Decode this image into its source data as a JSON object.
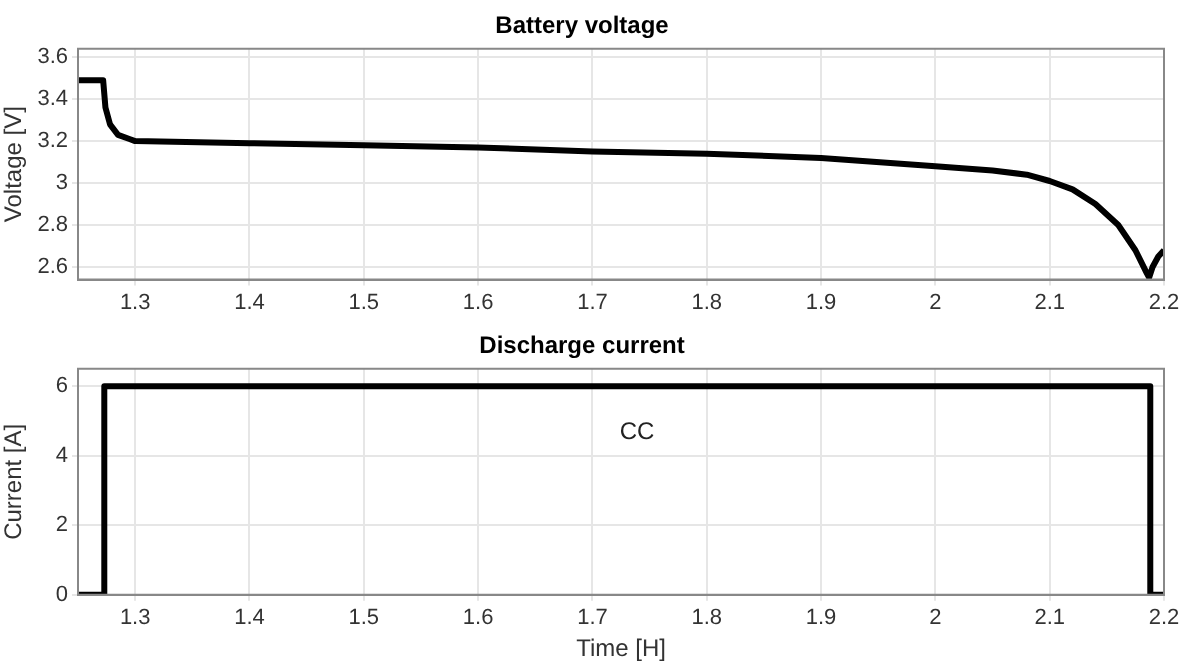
{
  "chart_data": [
    {
      "type": "line",
      "title": "Battery voltage",
      "ylabel": "Voltage [V]",
      "color": "#000000",
      "x": [
        1.25,
        1.272,
        1.274,
        1.278,
        1.285,
        1.295,
        1.3,
        1.4,
        1.5,
        1.6,
        1.7,
        1.8,
        1.9,
        2.0,
        2.05,
        2.08,
        2.1,
        2.12,
        2.14,
        2.16,
        2.175,
        2.185,
        2.187,
        2.19,
        2.195,
        2.2
      ],
      "values": [
        3.49,
        3.49,
        3.36,
        3.28,
        3.23,
        3.21,
        3.2,
        3.19,
        3.18,
        3.17,
        3.15,
        3.14,
        3.12,
        3.08,
        3.06,
        3.04,
        3.01,
        2.97,
        2.9,
        2.8,
        2.68,
        2.57,
        2.55,
        2.6,
        2.65,
        2.68
      ],
      "xlim": [
        1.25,
        2.2
      ],
      "xticks": [
        1.3,
        1.4,
        1.5,
        1.6,
        1.7,
        1.8,
        1.9,
        2,
        2.1,
        2.2
      ],
      "ylim": [
        2.54,
        3.64
      ],
      "yticks": [
        2.6,
        2.8,
        3,
        3.2,
        3.4,
        3.6
      ],
      "grid": true
    },
    {
      "type": "line",
      "title": "Discharge current",
      "xlabel": "Time [H]",
      "ylabel": "Current [A]",
      "color": "#000000",
      "x": [
        1.25,
        1.273,
        1.273,
        2.188,
        2.188,
        2.2
      ],
      "values": [
        0,
        0,
        6,
        6,
        0,
        0
      ],
      "xlim": [
        1.25,
        2.2
      ],
      "xticks": [
        1.3,
        1.4,
        1.5,
        1.6,
        1.7,
        1.8,
        1.9,
        2,
        2.1,
        2.2
      ],
      "ylim": [
        0,
        6.5
      ],
      "yticks": [
        0,
        2,
        4,
        6
      ],
      "grid": true,
      "annotations": [
        "CC"
      ]
    }
  ]
}
